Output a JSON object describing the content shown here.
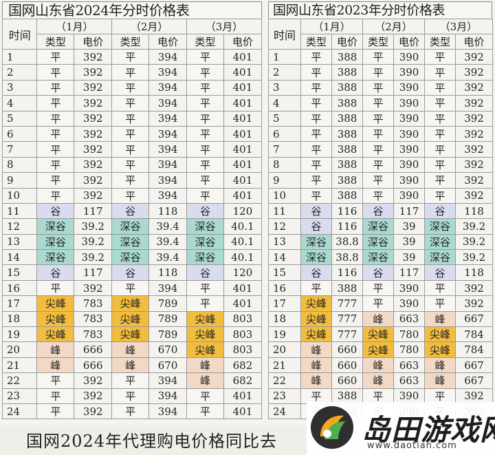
{
  "tables": [
    {
      "title": "国网山东省2024年分时价格表",
      "time_header": "时间",
      "months": [
        "（1月）",
        "（2月）",
        "（3月）"
      ],
      "type_header": "类型",
      "price_header": "电价",
      "rows": [
        {
          "hour": "1",
          "cells": [
            [
              "平",
              "392"
            ],
            [
              "平",
              "394"
            ],
            [
              "平",
              "401"
            ]
          ]
        },
        {
          "hour": "2",
          "cells": [
            [
              "平",
              "392"
            ],
            [
              "平",
              "394"
            ],
            [
              "平",
              "401"
            ]
          ]
        },
        {
          "hour": "3",
          "cells": [
            [
              "平",
              "392"
            ],
            [
              "平",
              "394"
            ],
            [
              "平",
              "401"
            ]
          ]
        },
        {
          "hour": "4",
          "cells": [
            [
              "平",
              "392"
            ],
            [
              "平",
              "394"
            ],
            [
              "平",
              "401"
            ]
          ]
        },
        {
          "hour": "5",
          "cells": [
            [
              "平",
              "392"
            ],
            [
              "平",
              "394"
            ],
            [
              "平",
              "401"
            ]
          ]
        },
        {
          "hour": "6",
          "cells": [
            [
              "平",
              "392"
            ],
            [
              "平",
              "394"
            ],
            [
              "平",
              "401"
            ]
          ]
        },
        {
          "hour": "7",
          "cells": [
            [
              "平",
              "392"
            ],
            [
              "平",
              "394"
            ],
            [
              "平",
              "401"
            ]
          ]
        },
        {
          "hour": "8",
          "cells": [
            [
              "平",
              "392"
            ],
            [
              "平",
              "394"
            ],
            [
              "平",
              "401"
            ]
          ]
        },
        {
          "hour": "9",
          "cells": [
            [
              "平",
              "392"
            ],
            [
              "平",
              "394"
            ],
            [
              "平",
              "401"
            ]
          ]
        },
        {
          "hour": "10",
          "cells": [
            [
              "平",
              "392"
            ],
            [
              "平",
              "394"
            ],
            [
              "平",
              "401"
            ]
          ]
        },
        {
          "hour": "11",
          "cells": [
            [
              "谷",
              "117"
            ],
            [
              "谷",
              "118"
            ],
            [
              "谷",
              "120"
            ]
          ]
        },
        {
          "hour": "12",
          "cells": [
            [
              "深谷",
              "39.2"
            ],
            [
              "深谷",
              "39.4"
            ],
            [
              "深谷",
              "40.1"
            ]
          ]
        },
        {
          "hour": "13",
          "cells": [
            [
              "深谷",
              "39.2"
            ],
            [
              "深谷",
              "39.4"
            ],
            [
              "深谷",
              "40.1"
            ]
          ]
        },
        {
          "hour": "14",
          "cells": [
            [
              "深谷",
              "39.2"
            ],
            [
              "深谷",
              "39.4"
            ],
            [
              "深谷",
              "40.1"
            ]
          ]
        },
        {
          "hour": "15",
          "cells": [
            [
              "谷",
              "117"
            ],
            [
              "谷",
              "118"
            ],
            [
              "谷",
              "120"
            ]
          ]
        },
        {
          "hour": "16",
          "cells": [
            [
              "平",
              "392"
            ],
            [
              "平",
              "394"
            ],
            [
              "平",
              "401"
            ]
          ]
        },
        {
          "hour": "17",
          "cells": [
            [
              "尖峰",
              "783"
            ],
            [
              "尖峰",
              "789"
            ],
            [
              "平",
              "401"
            ]
          ]
        },
        {
          "hour": "18",
          "cells": [
            [
              "尖峰",
              "783"
            ],
            [
              "尖峰",
              "789"
            ],
            [
              "尖峰",
              "803"
            ]
          ]
        },
        {
          "hour": "19",
          "cells": [
            [
              "尖峰",
              "783"
            ],
            [
              "尖峰",
              "789"
            ],
            [
              "尖峰",
              "803"
            ]
          ]
        },
        {
          "hour": "20",
          "cells": [
            [
              "峰",
              "666"
            ],
            [
              "峰",
              "670"
            ],
            [
              "尖峰",
              "803"
            ]
          ]
        },
        {
          "hour": "21",
          "cells": [
            [
              "峰",
              "666"
            ],
            [
              "峰",
              "670"
            ],
            [
              "峰",
              "682"
            ]
          ]
        },
        {
          "hour": "22",
          "cells": [
            [
              "平",
              "392"
            ],
            [
              "平",
              "394"
            ],
            [
              "峰",
              "682"
            ]
          ]
        },
        {
          "hour": "23",
          "cells": [
            [
              "平",
              "392"
            ],
            [
              "平",
              "394"
            ],
            [
              "平",
              "401"
            ]
          ]
        },
        {
          "hour": "24",
          "cells": [
            [
              "平",
              "392"
            ],
            [
              "平",
              "394"
            ],
            [
              "平",
              "401"
            ]
          ]
        }
      ]
    },
    {
      "title": "国网山东省2023年分时价格表",
      "time_header": "时间",
      "months": [
        "（1月）",
        "（2月）",
        "（3月）"
      ],
      "type_header": "类型",
      "price_header": "电价",
      "rows": [
        {
          "hour": "1",
          "cells": [
            [
              "平",
              "388"
            ],
            [
              "平",
              "390"
            ],
            [
              "平",
              "392"
            ]
          ]
        },
        {
          "hour": "2",
          "cells": [
            [
              "平",
              "388"
            ],
            [
              "平",
              "390"
            ],
            [
              "平",
              "392"
            ]
          ]
        },
        {
          "hour": "3",
          "cells": [
            [
              "平",
              "388"
            ],
            [
              "平",
              "390"
            ],
            [
              "平",
              "392"
            ]
          ]
        },
        {
          "hour": "4",
          "cells": [
            [
              "平",
              "388"
            ],
            [
              "平",
              "390"
            ],
            [
              "平",
              "392"
            ]
          ]
        },
        {
          "hour": "5",
          "cells": [
            [
              "平",
              "388"
            ],
            [
              "平",
              "390"
            ],
            [
              "平",
              "392"
            ]
          ]
        },
        {
          "hour": "6",
          "cells": [
            [
              "平",
              "388"
            ],
            [
              "平",
              "390"
            ],
            [
              "平",
              "392"
            ]
          ]
        },
        {
          "hour": "7",
          "cells": [
            [
              "平",
              "388"
            ],
            [
              "平",
              "390"
            ],
            [
              "平",
              "392"
            ]
          ]
        },
        {
          "hour": "8",
          "cells": [
            [
              "平",
              "388"
            ],
            [
              "平",
              "390"
            ],
            [
              "平",
              "392"
            ]
          ]
        },
        {
          "hour": "9",
          "cells": [
            [
              "平",
              "388"
            ],
            [
              "平",
              "390"
            ],
            [
              "平",
              "392"
            ]
          ]
        },
        {
          "hour": "10",
          "cells": [
            [
              "平",
              "388"
            ],
            [
              "平",
              "390"
            ],
            [
              "平",
              "392"
            ]
          ]
        },
        {
          "hour": "11",
          "cells": [
            [
              "谷",
              "116"
            ],
            [
              "谷",
              "117"
            ],
            [
              "谷",
              "118"
            ]
          ]
        },
        {
          "hour": "12",
          "cells": [
            [
              "谷",
              "116"
            ],
            [
              "深谷",
              "39"
            ],
            [
              "深谷",
              "39.2"
            ]
          ]
        },
        {
          "hour": "13",
          "cells": [
            [
              "深谷",
              "38.8"
            ],
            [
              "深谷",
              "39"
            ],
            [
              "深谷",
              "39.2"
            ]
          ]
        },
        {
          "hour": "14",
          "cells": [
            [
              "深谷",
              "38.8"
            ],
            [
              "深谷",
              "39"
            ],
            [
              "深谷",
              "39.2"
            ]
          ]
        },
        {
          "hour": "15",
          "cells": [
            [
              "谷",
              "116"
            ],
            [
              "谷",
              "117"
            ],
            [
              "谷",
              "118"
            ]
          ]
        },
        {
          "hour": "16",
          "cells": [
            [
              "平",
              "388"
            ],
            [
              "平",
              "390"
            ],
            [
              "平",
              "392"
            ]
          ]
        },
        {
          "hour": "17",
          "cells": [
            [
              "尖峰",
              "777"
            ],
            [
              "平",
              "390"
            ],
            [
              "平",
              "392"
            ]
          ]
        },
        {
          "hour": "18",
          "cells": [
            [
              "尖峰",
              "777"
            ],
            [
              "峰",
              "663"
            ],
            [
              "峰",
              "667"
            ]
          ]
        },
        {
          "hour": "19",
          "cells": [
            [
              "尖峰",
              "777"
            ],
            [
              "尖峰",
              "780"
            ],
            [
              "尖峰",
              "784"
            ]
          ]
        },
        {
          "hour": "20",
          "cells": [
            [
              "峰",
              "660"
            ],
            [
              "尖峰",
              "780"
            ],
            [
              "尖峰",
              "784"
            ]
          ]
        },
        {
          "hour": "21",
          "cells": [
            [
              "峰",
              "660"
            ],
            [
              "峰",
              "663"
            ],
            [
              "峰",
              "667"
            ]
          ]
        },
        {
          "hour": "22",
          "cells": [
            [
              "峰",
              "660"
            ],
            [
              "峰",
              "663"
            ],
            [
              "峰",
              "667"
            ]
          ]
        },
        {
          "hour": "23",
          "cells": [
            [
              "平",
              "388"
            ],
            [
              "平",
              "390"
            ],
            [
              "平",
              "392"
            ]
          ]
        },
        {
          "hour": "24",
          "cells": [
            [
              "平",
              "388"
            ],
            [
              "平",
              "390"
            ],
            [
              "平",
              "392"
            ]
          ]
        }
      ]
    }
  ],
  "type_colors": {
    "平": "#f7f6f2",
    "谷": "#d9dcef",
    "深谷": "#a9d9cf",
    "峰": "#f1d9c6",
    "尖峰": "#f2bd3e"
  },
  "caption": "国网2024年代理购电价格同比去",
  "watermark": {
    "name": "岛田游戏网",
    "url": "www.daotian.com"
  }
}
